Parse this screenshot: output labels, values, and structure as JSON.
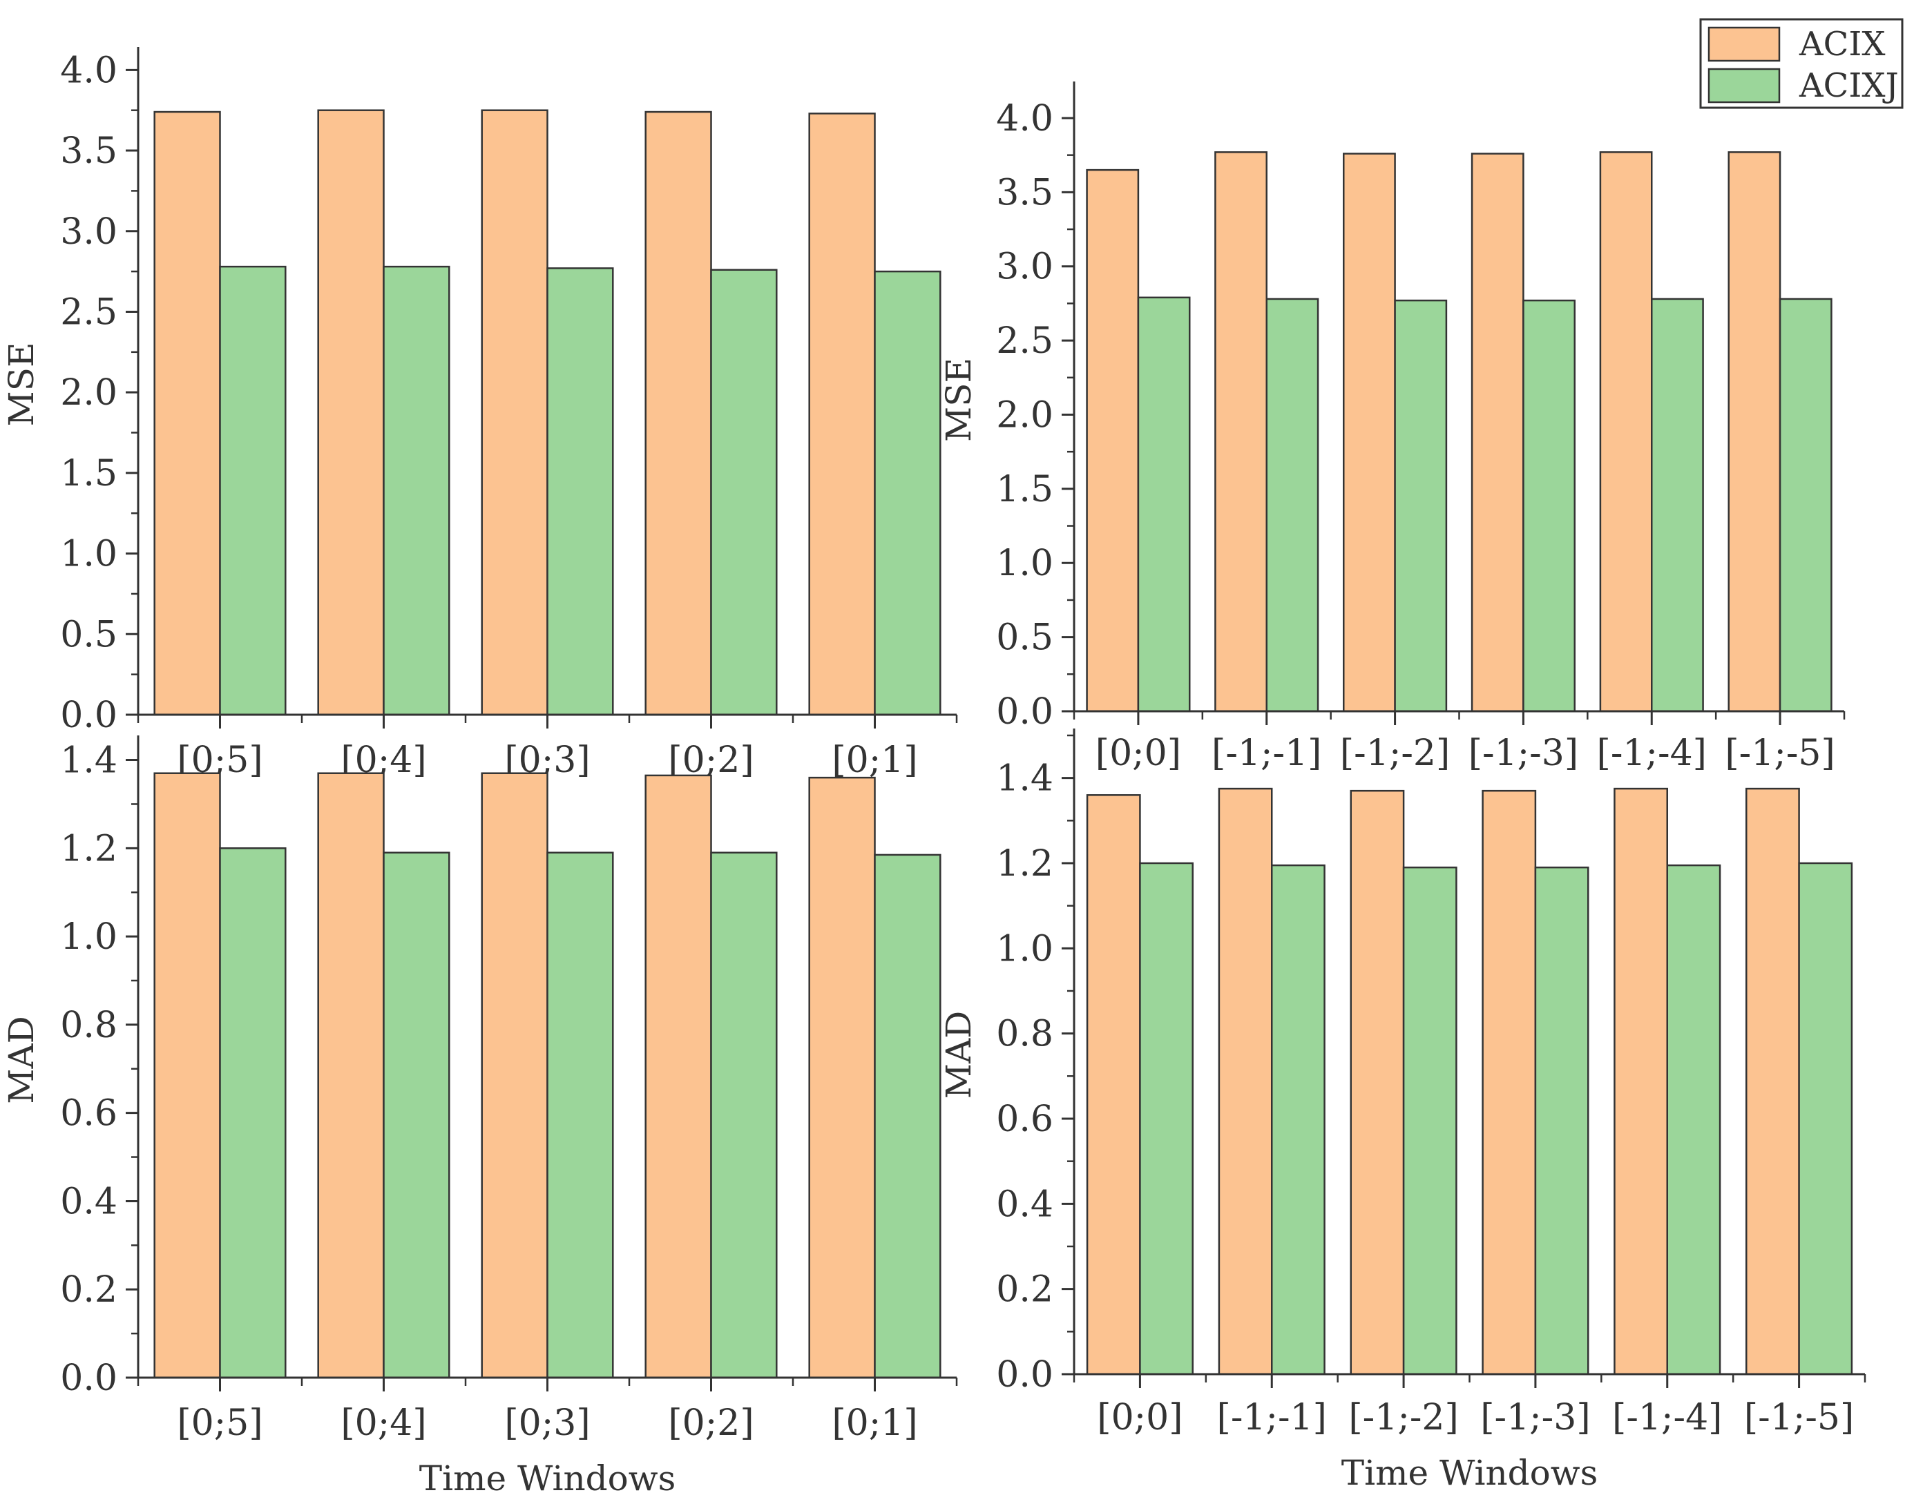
{
  "legend": {
    "entries": [
      {
        "name": "ACIX",
        "color": "#fcc391"
      },
      {
        "name": "ACIXJ",
        "color": "#9bd69a"
      }
    ]
  },
  "chart_data": [
    {
      "type": "bar",
      "ylabel": "MSE",
      "xlabel": "",
      "ylim": [
        0,
        4.1
      ],
      "yticks": [
        "0.0",
        "0.5",
        "1.0",
        "1.5",
        "2.0",
        "2.5",
        "3.0",
        "3.5",
        "4.0"
      ],
      "ytick_values": [
        0,
        0.5,
        1.0,
        1.5,
        2.0,
        2.5,
        3.0,
        3.5,
        4.0
      ],
      "categories": [
        "[0;5]",
        "[0;4]",
        "[0;3]",
        "[0;2]",
        "[0;1]"
      ],
      "series": [
        {
          "name": "ACIX",
          "values": [
            3.74,
            3.75,
            3.75,
            3.74,
            3.73
          ]
        },
        {
          "name": "ACIXJ",
          "values": [
            2.78,
            2.78,
            2.77,
            2.76,
            2.75
          ]
        }
      ]
    },
    {
      "type": "bar",
      "ylabel": "MSE",
      "xlabel": "",
      "ylim": [
        0,
        4.2
      ],
      "yticks": [
        "0.0",
        "0.5",
        "1.0",
        "1.5",
        "2.0",
        "2.5",
        "3.0",
        "3.5",
        "4.0"
      ],
      "ytick_values": [
        0,
        0.5,
        1.0,
        1.5,
        2.0,
        2.5,
        3.0,
        3.5,
        4.0
      ],
      "categories": [
        "[0;0]",
        "[-1;-1]",
        "[-1;-2]",
        "[-1;-3]",
        "[-1;-4]",
        "[-1;-5]"
      ],
      "series": [
        {
          "name": "ACIX",
          "values": [
            3.65,
            3.77,
            3.76,
            3.76,
            3.77,
            3.77
          ]
        },
        {
          "name": "ACIXJ",
          "values": [
            2.79,
            2.78,
            2.77,
            2.77,
            2.78,
            2.78
          ]
        }
      ]
    },
    {
      "type": "bar",
      "ylabel": "MAD",
      "xlabel": "Time Windows",
      "ylim": [
        0,
        1.44
      ],
      "yticks": [
        "0.0",
        "0.2",
        "0.4",
        "0.6",
        "0.8",
        "1.0",
        "1.2",
        "1.4"
      ],
      "ytick_values": [
        0,
        0.2,
        0.4,
        0.6,
        0.8,
        1.0,
        1.2,
        1.4
      ],
      "categories": [
        "[0;5]",
        "[0;4]",
        "[0;3]",
        "[0;2]",
        "[0;1]"
      ],
      "series": [
        {
          "name": "ACIX",
          "values": [
            1.37,
            1.37,
            1.37,
            1.365,
            1.36
          ]
        },
        {
          "name": "ACIXJ",
          "values": [
            1.2,
            1.19,
            1.19,
            1.19,
            1.185
          ]
        }
      ]
    },
    {
      "type": "bar",
      "ylabel": "MAD",
      "xlabel": "Time Windows",
      "ylim": [
        0,
        1.5
      ],
      "yticks": [
        "0.0",
        "0.2",
        "0.4",
        "0.6",
        "0.8",
        "1.0",
        "1.2",
        "1.4"
      ],
      "ytick_values": [
        0,
        0.2,
        0.4,
        0.6,
        0.8,
        1.0,
        1.2,
        1.4
      ],
      "categories": [
        "[0;0]",
        "[-1;-1]",
        "[-1;-2]",
        "[-1;-3]",
        "[-1;-4]",
        "[-1;-5]"
      ],
      "series": [
        {
          "name": "ACIX",
          "values": [
            1.36,
            1.375,
            1.37,
            1.37,
            1.375,
            1.375
          ]
        },
        {
          "name": "ACIXJ",
          "values": [
            1.2,
            1.195,
            1.19,
            1.19,
            1.195,
            1.2
          ]
        }
      ]
    }
  ]
}
